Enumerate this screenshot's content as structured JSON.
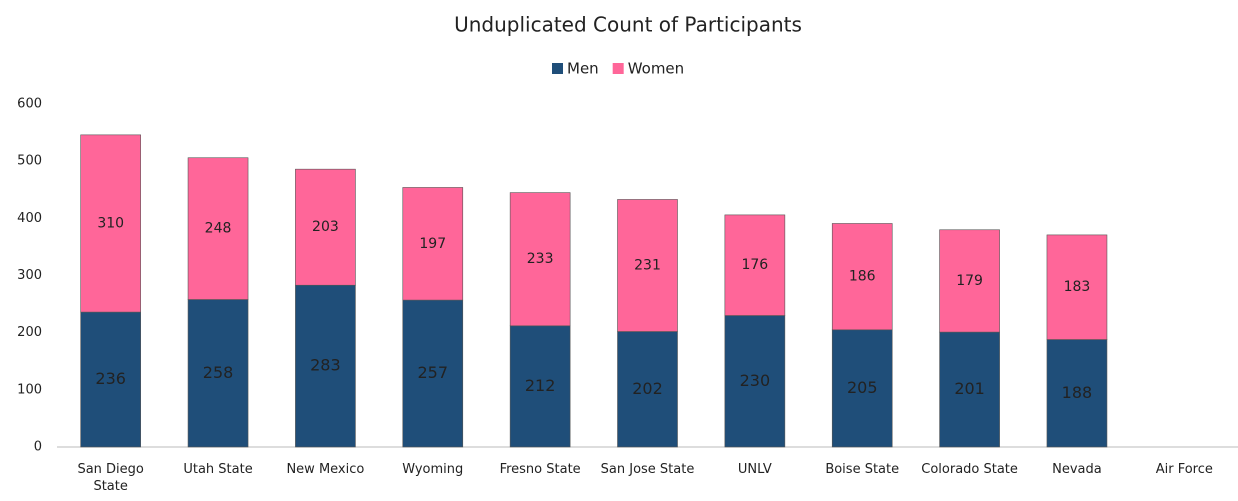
{
  "chart_data": {
    "type": "stacked_bar",
    "title": "Unduplicated Count of Participants",
    "categories": [
      "San Diego State",
      "Utah State",
      "New Mexico",
      "Wyoming",
      "Fresno State",
      "San Jose State",
      "UNLV",
      "Boise State",
      "Colorado State",
      "Nevada",
      "Air Force"
    ],
    "series": [
      {
        "name": "Men",
        "color": "#1f4e79",
        "values": [
          236,
          258,
          283,
          257,
          212,
          202,
          230,
          205,
          201,
          188,
          null
        ]
      },
      {
        "name": "Women",
        "color": "#ff6699",
        "values": [
          310,
          248,
          203,
          197,
          233,
          231,
          176,
          186,
          179,
          183,
          null
        ]
      }
    ],
    "ylim": [
      0,
      600
    ],
    "yticks": [
      0,
      100,
      200,
      300,
      400,
      500,
      600
    ],
    "legend": "top",
    "grid": false
  }
}
